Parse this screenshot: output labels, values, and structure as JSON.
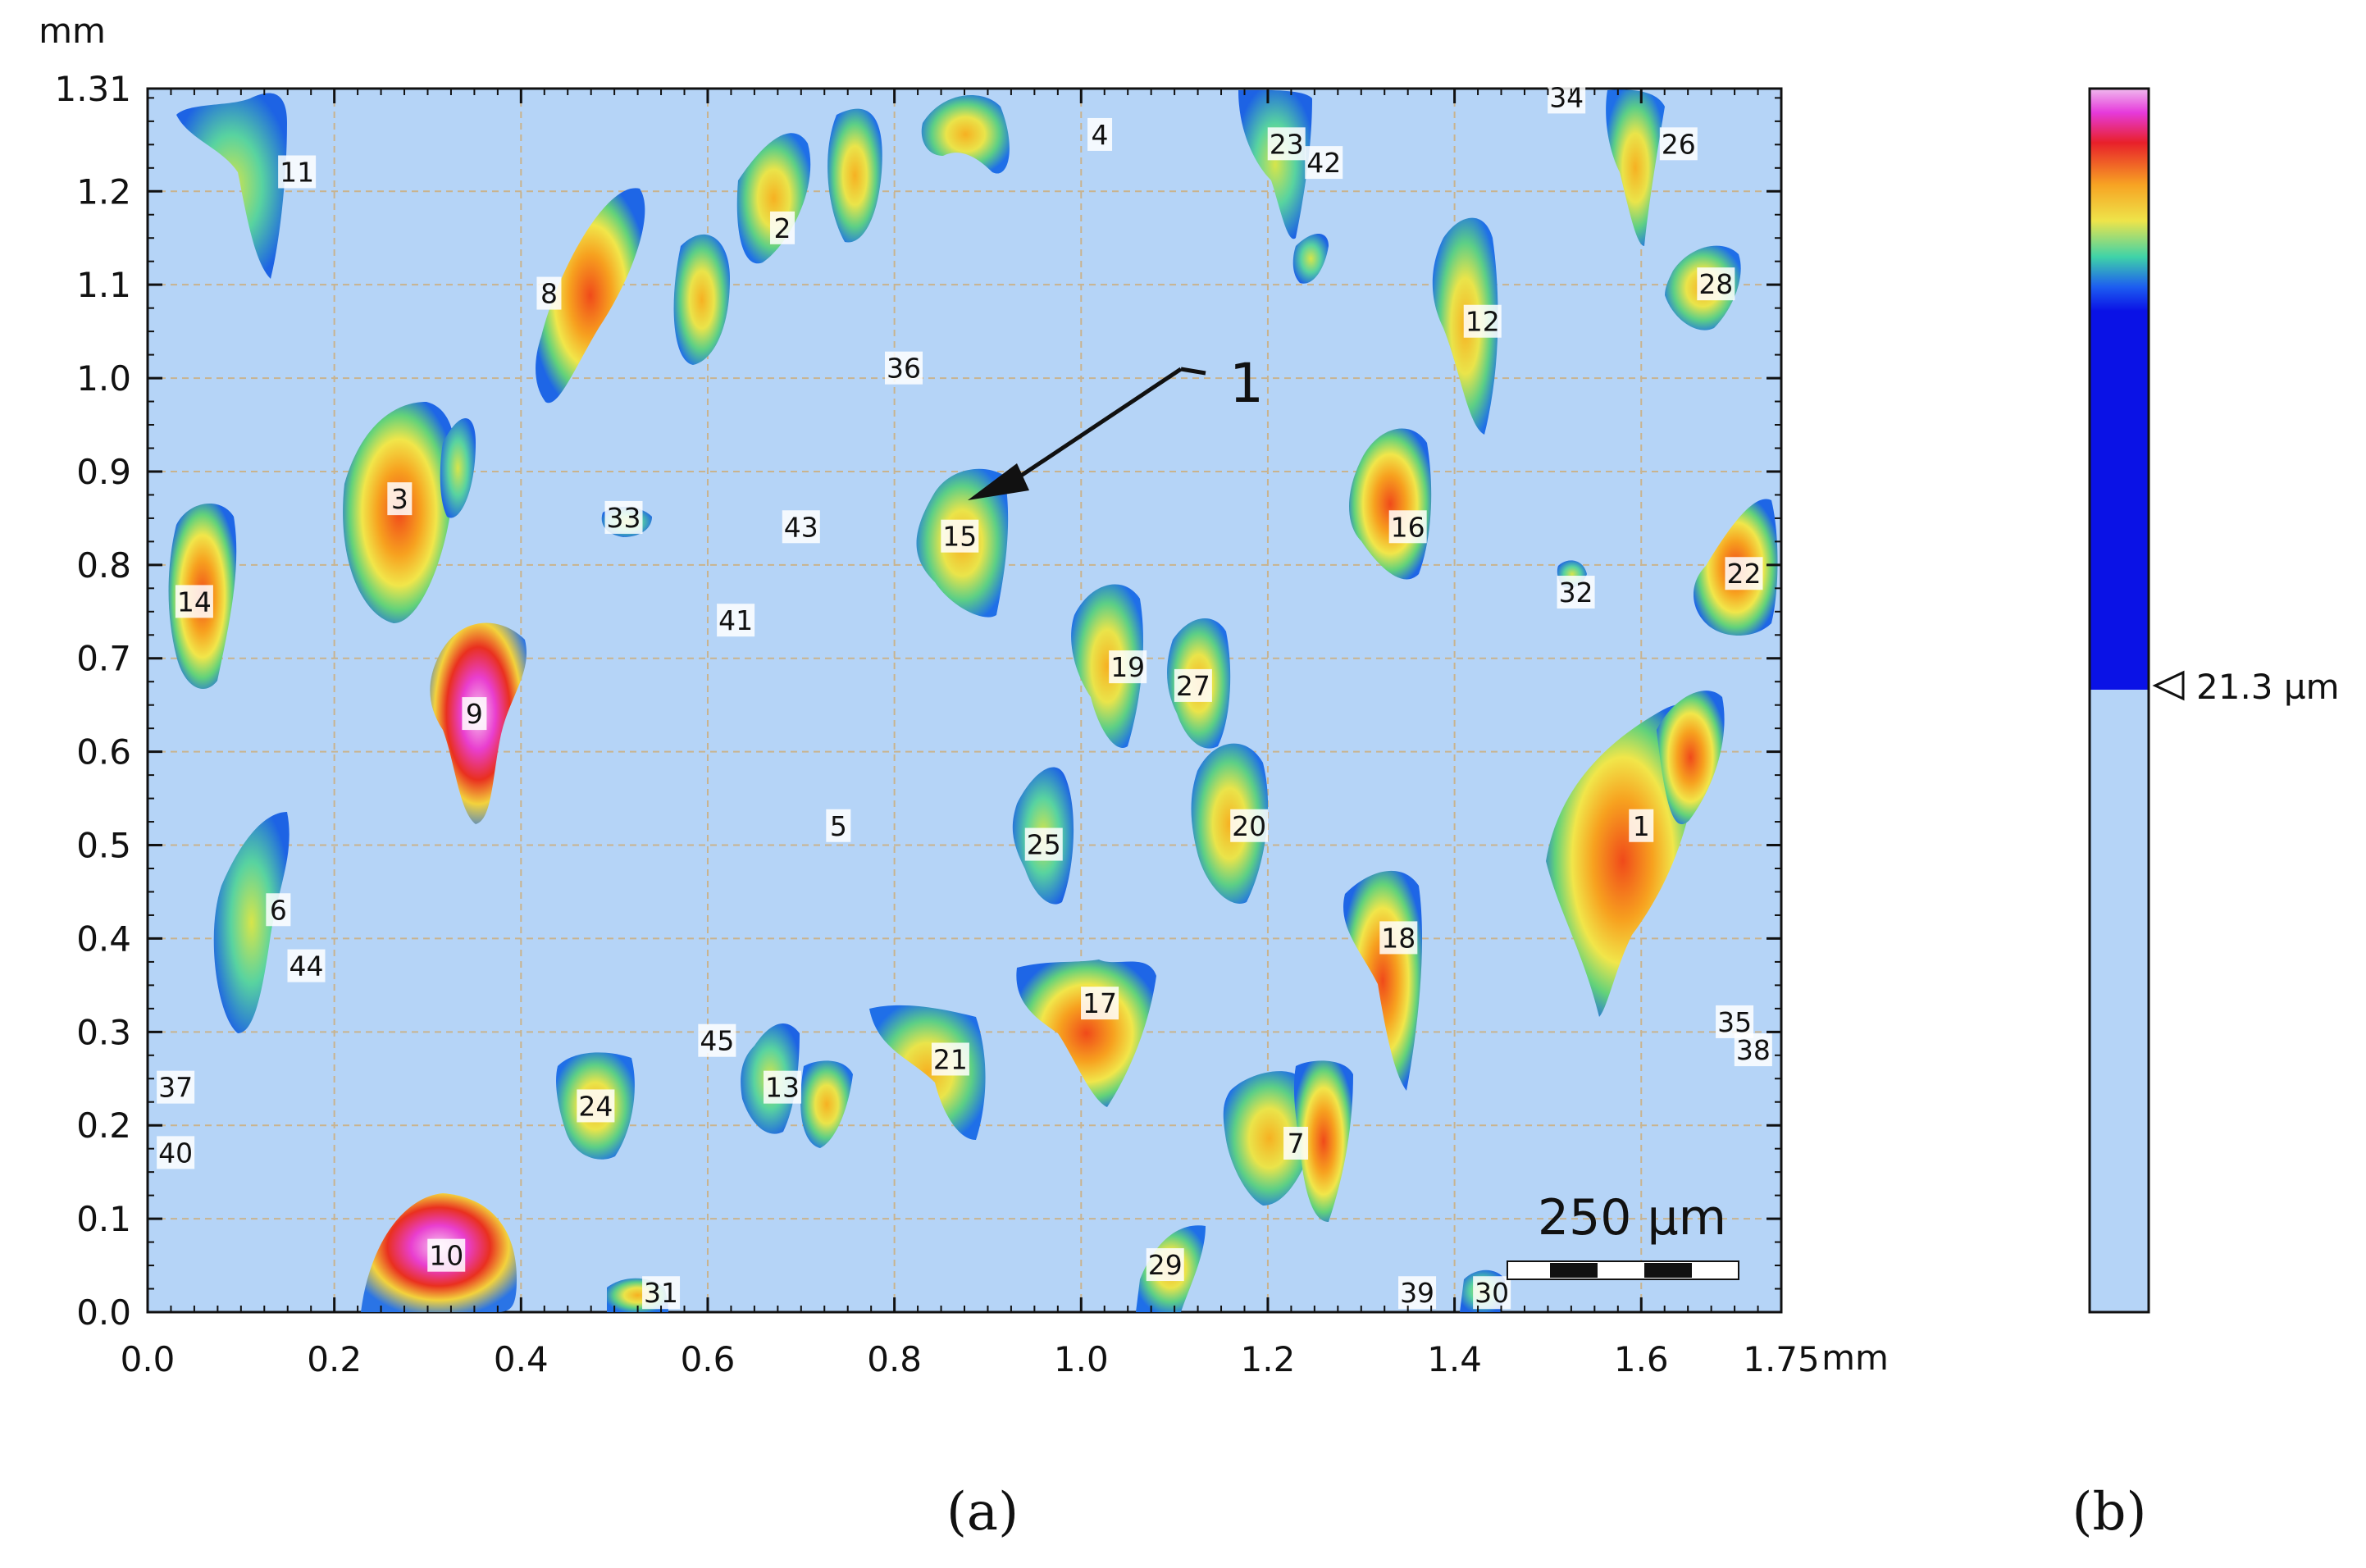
{
  "map": {
    "x_unit": "mm",
    "y_unit": "mm",
    "x_ticks": [
      "0.0",
      "0.2",
      "0.4",
      "0.6",
      "0.8",
      "1.0",
      "1.2",
      "1.4",
      "1.6",
      "1.75"
    ],
    "y_ticks": [
      "0.0",
      "0.1",
      "0.2",
      "0.3",
      "0.4",
      "0.5",
      "0.6",
      "0.7",
      "0.8",
      "0.9",
      "1.0",
      "1.1",
      "1.2",
      "1.31"
    ],
    "x_range": [
      0,
      1.75
    ],
    "y_range": [
      0,
      1.31
    ],
    "grid": true,
    "colors": {
      "background": "#b5d4f7",
      "grid": "#c9b38e"
    },
    "particles": [
      {
        "id": "1",
        "x": 1.6,
        "y": 0.52
      },
      {
        "id": "2",
        "x": 0.68,
        "y": 1.16
      },
      {
        "id": "3",
        "x": 0.27,
        "y": 0.87
      },
      {
        "id": "4",
        "x": 1.02,
        "y": 1.26
      },
      {
        "id": "5",
        "x": 0.74,
        "y": 0.52
      },
      {
        "id": "6",
        "x": 0.14,
        "y": 0.43
      },
      {
        "id": "7",
        "x": 1.23,
        "y": 0.18
      },
      {
        "id": "8",
        "x": 0.43,
        "y": 1.09
      },
      {
        "id": "9",
        "x": 0.35,
        "y": 0.64
      },
      {
        "id": "10",
        "x": 0.32,
        "y": 0.06
      },
      {
        "id": "11",
        "x": 0.16,
        "y": 1.22
      },
      {
        "id": "12",
        "x": 1.43,
        "y": 1.06
      },
      {
        "id": "13",
        "x": 0.68,
        "y": 0.24
      },
      {
        "id": "14",
        "x": 0.05,
        "y": 0.76
      },
      {
        "id": "15",
        "x": 0.87,
        "y": 0.83
      },
      {
        "id": "16",
        "x": 1.35,
        "y": 0.84
      },
      {
        "id": "17",
        "x": 1.02,
        "y": 0.33
      },
      {
        "id": "18",
        "x": 1.34,
        "y": 0.4
      },
      {
        "id": "19",
        "x": 1.05,
        "y": 0.69
      },
      {
        "id": "20",
        "x": 1.18,
        "y": 0.52
      },
      {
        "id": "21",
        "x": 0.86,
        "y": 0.27
      },
      {
        "id": "22",
        "x": 1.71,
        "y": 0.79
      },
      {
        "id": "23",
        "x": 1.22,
        "y": 1.25
      },
      {
        "id": "24",
        "x": 0.48,
        "y": 0.22
      },
      {
        "id": "25",
        "x": 0.96,
        "y": 0.5
      },
      {
        "id": "26",
        "x": 1.64,
        "y": 1.25
      },
      {
        "id": "27",
        "x": 1.12,
        "y": 0.67
      },
      {
        "id": "28",
        "x": 1.68,
        "y": 1.1
      },
      {
        "id": "29",
        "x": 1.09,
        "y": 0.05
      },
      {
        "id": "30",
        "x": 1.44,
        "y": 0.02
      },
      {
        "id": "31",
        "x": 0.55,
        "y": 0.02
      },
      {
        "id": "32",
        "x": 1.53,
        "y": 0.77
      },
      {
        "id": "33",
        "x": 0.51,
        "y": 0.85
      },
      {
        "id": "34",
        "x": 1.52,
        "y": 1.3
      },
      {
        "id": "35",
        "x": 1.7,
        "y": 0.31
      },
      {
        "id": "36",
        "x": 0.81,
        "y": 1.01
      },
      {
        "id": "37",
        "x": 0.03,
        "y": 0.24
      },
      {
        "id": "38",
        "x": 1.72,
        "y": 0.28
      },
      {
        "id": "39",
        "x": 1.36,
        "y": 0.02
      },
      {
        "id": "40",
        "x": 0.03,
        "y": 0.17
      },
      {
        "id": "41",
        "x": 0.63,
        "y": 0.74
      },
      {
        "id": "42",
        "x": 1.26,
        "y": 1.23
      },
      {
        "id": "43",
        "x": 0.7,
        "y": 0.84
      },
      {
        "id": "44",
        "x": 0.17,
        "y": 0.37
      },
      {
        "id": "45",
        "x": 0.61,
        "y": 0.29
      }
    ],
    "arrow_label": "1",
    "scale_bar": "250 µm"
  },
  "colorbar": {
    "threshold_label": "21.3 µm"
  },
  "panels": {
    "a": "(a)",
    "b": "(b)"
  }
}
